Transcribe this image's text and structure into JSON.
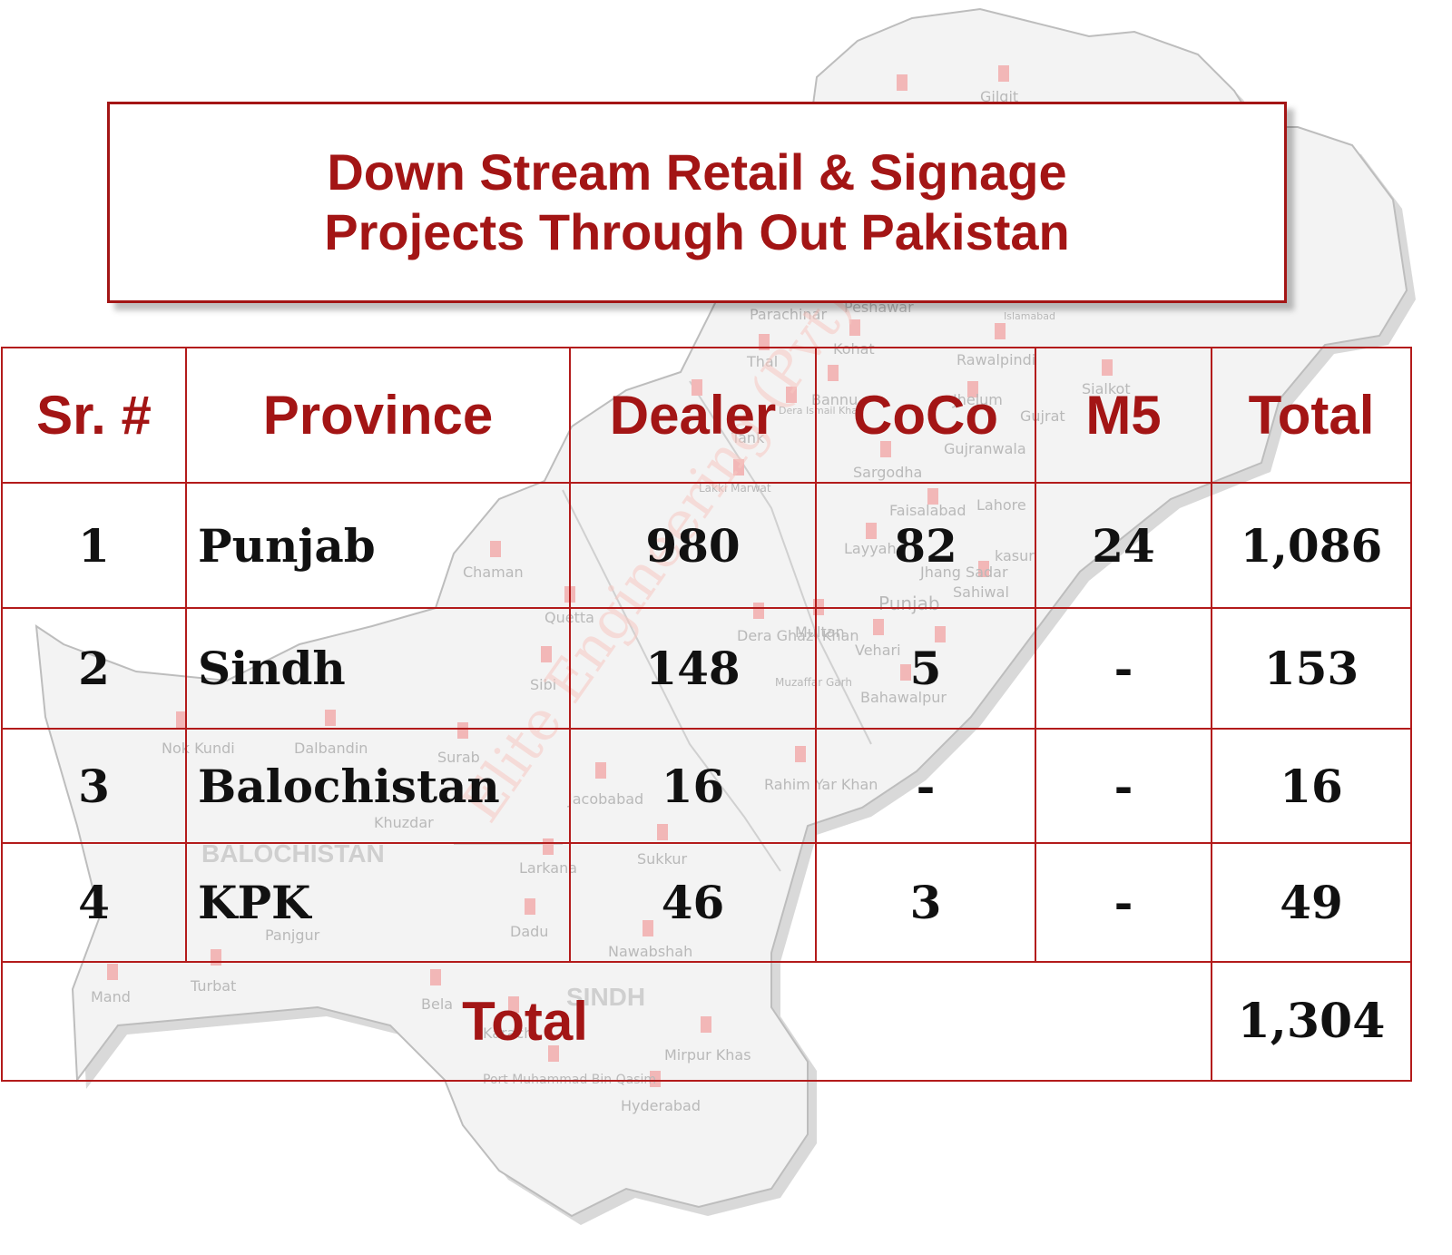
{
  "title": {
    "line1": "Down Stream Retail & Signage",
    "line2": "Projects Through Out Pakistan"
  },
  "background_map": {
    "watermark": "Elite Engineering (Pvt) Ltd.",
    "regions": [
      "BALOCHISTAN",
      "SINDH",
      "Punjab"
    ],
    "cities": [
      "Gilgit",
      "Peshawar",
      "Parachinar",
      "Islamabad",
      "Kohat",
      "Thal",
      "Rawalpindi",
      "Bannu",
      "Jhelum",
      "Gujrat",
      "Sialkot",
      "Tank",
      "Dera Ismail Khan",
      "Gujranwala",
      "Lakki Marwat",
      "Sargodha",
      "Faisalabad",
      "Lahore",
      "Layyah",
      "Jhang Sadar",
      "kasur",
      "Sahiwal",
      "Chaman",
      "Quetta",
      "Dera Ghazi Khan",
      "Multan",
      "Vehari",
      "Muzaffar Garh",
      "Bahawalpur",
      "Sibi",
      "Nok Kundi",
      "Dalbandin",
      "Surab",
      "Jacobabad",
      "Rahim Yar Khan",
      "Khuzdar",
      "Larkana",
      "Sukkur",
      "Panjgur",
      "Dadu",
      "Nawabshah",
      "Mand",
      "Turbat",
      "Bela",
      "Karachi",
      "Mirpur Khas",
      "Port Muhammad Bin Qasim",
      "Hyderabad"
    ]
  },
  "table": {
    "headers": [
      "Sr. #",
      "Province",
      "Dealer",
      "CoCo",
      "M5",
      "Total"
    ],
    "rows": [
      {
        "sr": "1",
        "province": "Punjab",
        "dealer": "980",
        "coco": "82",
        "m5": "24",
        "total": "1,086"
      },
      {
        "sr": "2",
        "province": "Sindh",
        "dealer": "148",
        "coco": "5",
        "m5": "-",
        "total": "153"
      },
      {
        "sr": "3",
        "province": "Balochistan",
        "dealer": "16",
        "coco": "-",
        "m5": "-",
        "total": "16"
      },
      {
        "sr": "4",
        "province": "KPK",
        "dealer": "46",
        "coco": "3",
        "m5": "-",
        "total": "49"
      }
    ],
    "total_label": "Total",
    "grand_total": "1,304"
  },
  "colors": {
    "accent": "#a31515",
    "border": "#b31b1b",
    "map_fill": "#f1f1f1",
    "map_shadow": "#d6d6d6"
  }
}
